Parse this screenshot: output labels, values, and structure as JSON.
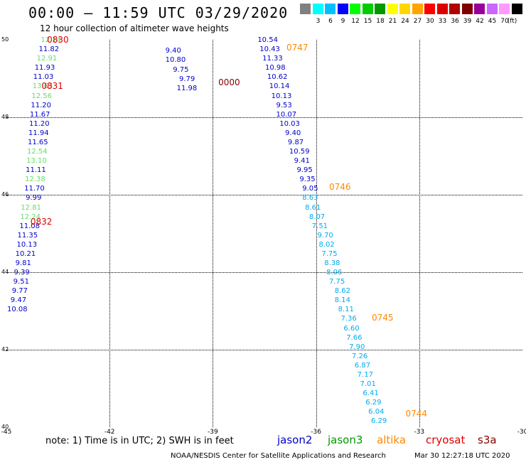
{
  "header": {
    "title": "00:00 – 11:59 UTC 03/29/2020",
    "subtitle": "12 hour collection of altimeter wave heights"
  },
  "colorbar": {
    "unit_label": "(ft)",
    "items": [
      {
        "label": "",
        "color": "#808080"
      },
      {
        "label": "3",
        "color": "#00ffff"
      },
      {
        "label": "6",
        "color": "#00bfff"
      },
      {
        "label": "9",
        "color": "#0000ff"
      },
      {
        "label": "12",
        "color": "#00ff00"
      },
      {
        "label": "15",
        "color": "#00cc00"
      },
      {
        "label": "18",
        "color": "#009900"
      },
      {
        "label": "21",
        "color": "#ffff00"
      },
      {
        "label": "24",
        "color": "#ffd700"
      },
      {
        "label": "27",
        "color": "#ffa500"
      },
      {
        "label": "30",
        "color": "#ff0000"
      },
      {
        "label": "33",
        "color": "#dd0000"
      },
      {
        "label": "36",
        "color": "#b00000"
      },
      {
        "label": "39",
        "color": "#800000"
      },
      {
        "label": "42",
        "color": "#990099"
      },
      {
        "label": "45",
        "color": "#cc66ff"
      },
      {
        "label": "70",
        "color": "#ff99ff"
      },
      {
        "label": "",
        "color": "#000000"
      }
    ]
  },
  "map": {
    "lon_min": -45,
    "lon_max": -30,
    "lat_min": 40,
    "lat_max": 50,
    "lon_ticks": [
      "-45",
      "-42",
      "-39",
      "-36",
      "-33",
      "-30"
    ],
    "lat_ticks": [
      "40",
      "42",
      "44",
      "46",
      "48",
      "50"
    ],
    "satellite_colors": {
      "jason2": "#0000cc",
      "jason3": "#009900",
      "jason3_light": "#66dd66",
      "altika": "#ff8800",
      "cryosat": "#dd0000",
      "s3a": "#880000",
      "s3a_light": "#00aaee"
    },
    "tracks": [
      {
        "id": "cryosat-0830",
        "time_labels": [
          {
            "text": "0830",
            "lon": -43.82,
            "lat": 50.0,
            "color": "#dd0000"
          },
          {
            "text": "0831",
            "lon": -43.98,
            "lat": 48.8,
            "color": "#dd0000"
          },
          {
            "text": "0832",
            "lon": -44.3,
            "lat": 45.3,
            "color": "#dd0000"
          }
        ],
        "obs": [
          {
            "text": "12.14",
            "lon": -44.0,
            "lat": 49.98,
            "color": "#66dd66"
          },
          {
            "text": "11.82",
            "lon": -44.06,
            "lat": 49.74,
            "color": "#0000cc"
          },
          {
            "text": "12.91",
            "lon": -44.12,
            "lat": 49.5,
            "color": "#66dd66"
          },
          {
            "text": "11.93",
            "lon": -44.18,
            "lat": 49.26,
            "color": "#0000cc"
          },
          {
            "text": "11.03",
            "lon": -44.22,
            "lat": 49.02,
            "color": "#0000cc"
          },
          {
            "text": "13.63",
            "lon": -44.24,
            "lat": 48.78,
            "color": "#66dd66"
          },
          {
            "text": "12.56",
            "lon": -44.27,
            "lat": 48.54,
            "color": "#66dd66"
          },
          {
            "text": "11.20",
            "lon": -44.29,
            "lat": 48.3,
            "color": "#0000cc"
          },
          {
            "text": "11.67",
            "lon": -44.32,
            "lat": 48.06,
            "color": "#0000cc"
          },
          {
            "text": "11.20",
            "lon": -44.34,
            "lat": 47.82,
            "color": "#0000cc"
          },
          {
            "text": "11.94",
            "lon": -44.36,
            "lat": 47.58,
            "color": "#0000cc"
          },
          {
            "text": "11.65",
            "lon": -44.38,
            "lat": 47.34,
            "color": "#0000cc"
          },
          {
            "text": "12.54",
            "lon": -44.4,
            "lat": 47.1,
            "color": "#66dd66"
          },
          {
            "text": "13.10",
            "lon": -44.42,
            "lat": 46.86,
            "color": "#66dd66"
          },
          {
            "text": "11.11",
            "lon": -44.44,
            "lat": 46.62,
            "color": "#0000cc"
          },
          {
            "text": "12.38",
            "lon": -44.46,
            "lat": 46.38,
            "color": "#66dd66"
          },
          {
            "text": "11.70",
            "lon": -44.48,
            "lat": 46.14,
            "color": "#0000cc"
          },
          {
            "text": "9.99",
            "lon": -44.44,
            "lat": 45.9,
            "color": "#0000cc"
          },
          {
            "text": "12.81",
            "lon": -44.58,
            "lat": 45.66,
            "color": "#66dd66"
          },
          {
            "text": "12.24",
            "lon": -44.6,
            "lat": 45.42,
            "color": "#66dd66"
          },
          {
            "text": "11.08",
            "lon": -44.62,
            "lat": 45.18,
            "color": "#0000cc"
          },
          {
            "text": "11.35",
            "lon": -44.68,
            "lat": 44.94,
            "color": "#0000cc"
          },
          {
            "text": "10.13",
            "lon": -44.7,
            "lat": 44.7,
            "color": "#0000cc"
          },
          {
            "text": "10.21",
            "lon": -44.74,
            "lat": 44.46,
            "color": "#0000cc"
          },
          {
            "text": "9.81",
            "lon": -44.74,
            "lat": 44.22,
            "color": "#0000cc"
          },
          {
            "text": "9.39",
            "lon": -44.78,
            "lat": 43.98,
            "color": "#0000cc"
          },
          {
            "text": "9.51",
            "lon": -44.8,
            "lat": 43.74,
            "color": "#0000cc"
          },
          {
            "text": "9.77",
            "lon": -44.84,
            "lat": 43.5,
            "color": "#0000cc"
          },
          {
            "text": "9.47",
            "lon": -44.88,
            "lat": 43.26,
            "color": "#0000cc"
          },
          {
            "text": "10.08",
            "lon": -44.98,
            "lat": 43.02,
            "color": "#0000cc"
          }
        ]
      },
      {
        "id": "s3a-0000",
        "time_labels": [
          {
            "text": "0000",
            "lon": -38.84,
            "lat": 48.9,
            "color": "#880000"
          }
        ],
        "obs": [
          {
            "text": "9.40",
            "lon": -40.38,
            "lat": 49.7,
            "color": "#0000cc"
          },
          {
            "text": "10.80",
            "lon": -40.38,
            "lat": 49.46,
            "color": "#0000cc"
          },
          {
            "text": "9.75",
            "lon": -40.16,
            "lat": 49.22,
            "color": "#0000cc"
          },
          {
            "text": "9.79",
            "lon": -39.98,
            "lat": 48.98,
            "color": "#0000cc"
          },
          {
            "text": "11.98",
            "lon": -40.05,
            "lat": 48.74,
            "color": "#0000cc"
          }
        ]
      },
      {
        "id": "altika-0747",
        "time_labels": [
          {
            "text": "0747",
            "lon": -36.86,
            "lat": 49.8,
            "color": "#ff8800"
          },
          {
            "text": "0746",
            "lon": -35.62,
            "lat": 46.2,
            "color": "#ff8800"
          },
          {
            "text": "0745",
            "lon": -34.38,
            "lat": 42.82,
            "color": "#ff8800"
          },
          {
            "text": "0744",
            "lon": -33.4,
            "lat": 40.34,
            "color": "#ff8800"
          }
        ],
        "obs": [
          {
            "text": "10.54",
            "lon": -37.7,
            "lat": 49.98,
            "color": "#0000cc"
          },
          {
            "text": "10.43",
            "lon": -37.64,
            "lat": 49.74,
            "color": "#0000cc"
          },
          {
            "text": "11.33",
            "lon": -37.56,
            "lat": 49.5,
            "color": "#0000cc"
          },
          {
            "text": "10.98",
            "lon": -37.48,
            "lat": 49.26,
            "color": "#0000cc"
          },
          {
            "text": "10.62",
            "lon": -37.42,
            "lat": 49.02,
            "color": "#0000cc"
          },
          {
            "text": "10.14",
            "lon": -37.36,
            "lat": 48.78,
            "color": "#0000cc"
          },
          {
            "text": "10.13",
            "lon": -37.3,
            "lat": 48.54,
            "color": "#0000cc"
          },
          {
            "text": "9.53",
            "lon": -37.16,
            "lat": 48.3,
            "color": "#0000cc"
          },
          {
            "text": "10.07",
            "lon": -37.16,
            "lat": 48.06,
            "color": "#0000cc"
          },
          {
            "text": "10.03",
            "lon": -37.06,
            "lat": 47.82,
            "color": "#0000cc"
          },
          {
            "text": "9.40",
            "lon": -36.9,
            "lat": 47.58,
            "color": "#0000cc"
          },
          {
            "text": "9.87",
            "lon": -36.82,
            "lat": 47.34,
            "color": "#0000cc"
          },
          {
            "text": "10.59",
            "lon": -36.78,
            "lat": 47.1,
            "color": "#0000cc"
          },
          {
            "text": "9.41",
            "lon": -36.64,
            "lat": 46.86,
            "color": "#0000cc"
          },
          {
            "text": "9.95",
            "lon": -36.56,
            "lat": 46.62,
            "color": "#0000cc"
          },
          {
            "text": "9.35",
            "lon": -36.48,
            "lat": 46.38,
            "color": "#0000cc"
          },
          {
            "text": "9.05",
            "lon": -36.4,
            "lat": 46.14,
            "color": "#0000cc"
          },
          {
            "text": "8.63",
            "lon": -36.4,
            "lat": 45.9,
            "color": "#00aaee"
          },
          {
            "text": "8.61",
            "lon": -36.32,
            "lat": 45.66,
            "color": "#00aaee"
          },
          {
            "text": "8.07",
            "lon": -36.2,
            "lat": 45.42,
            "color": "#00aaee"
          },
          {
            "text": "7.51",
            "lon": -36.12,
            "lat": 45.18,
            "color": "#00aaee"
          },
          {
            "text": "9.70",
            "lon": -35.96,
            "lat": 44.94,
            "color": "#00aaee"
          },
          {
            "text": "8.02",
            "lon": -35.92,
            "lat": 44.7,
            "color": "#00aaee"
          },
          {
            "text": "7.75",
            "lon": -35.84,
            "lat": 44.46,
            "color": "#00aaee"
          },
          {
            "text": "8.38",
            "lon": -35.76,
            "lat": 44.22,
            "color": "#00aaee"
          },
          {
            "text": "8.06",
            "lon": -35.7,
            "lat": 43.98,
            "color": "#00aaee"
          },
          {
            "text": "7.75",
            "lon": -35.62,
            "lat": 43.74,
            "color": "#00aaee"
          },
          {
            "text": "8.62",
            "lon": -35.46,
            "lat": 43.5,
            "color": "#00aaee"
          },
          {
            "text": "8.14",
            "lon": -35.46,
            "lat": 43.26,
            "color": "#00aaee"
          },
          {
            "text": "8.11",
            "lon": -35.36,
            "lat": 43.02,
            "color": "#00aaee"
          },
          {
            "text": "7.36",
            "lon": -35.28,
            "lat": 42.78,
            "color": "#00aaee"
          },
          {
            "text": "6.60",
            "lon": -35.2,
            "lat": 42.54,
            "color": "#00aaee"
          },
          {
            "text": "7.66",
            "lon": -35.12,
            "lat": 42.3,
            "color": "#00aaee"
          },
          {
            "text": "7.90",
            "lon": -35.04,
            "lat": 42.06,
            "color": "#00aaee"
          },
          {
            "text": "7.26",
            "lon": -34.96,
            "lat": 41.82,
            "color": "#00aaee"
          },
          {
            "text": "6.87",
            "lon": -34.88,
            "lat": 41.58,
            "color": "#00aaee"
          },
          {
            "text": "7.17",
            "lon": -34.8,
            "lat": 41.34,
            "color": "#00aaee"
          },
          {
            "text": "7.01",
            "lon": -34.72,
            "lat": 41.1,
            "color": "#00aaee"
          },
          {
            "text": "6.41",
            "lon": -34.64,
            "lat": 40.86,
            "color": "#00aaee"
          },
          {
            "text": "6.29",
            "lon": -34.56,
            "lat": 40.62,
            "color": "#00aaee"
          },
          {
            "text": "6.04",
            "lon": -34.48,
            "lat": 40.38,
            "color": "#00aaee"
          },
          {
            "text": "6.29",
            "lon": -34.4,
            "lat": 40.14,
            "color": "#00aaee"
          }
        ]
      }
    ]
  },
  "footer": {
    "note": "note:  1) Time is in UTC;  2) SWH is in feet",
    "legend": [
      {
        "label": "jason2",
        "color": "#0000cc"
      },
      {
        "label": "jason3",
        "color": "#009900"
      },
      {
        "label": "altika",
        "color": "#ff8800"
      },
      {
        "label": "cryosat",
        "color": "#dd0000"
      },
      {
        "label": "s3a",
        "color": "#880000"
      }
    ],
    "credit": "NOAA/NESDIS Center for Satellite Applications and Research",
    "generated": "Mar 30 12:27:18 UTC 2020"
  }
}
